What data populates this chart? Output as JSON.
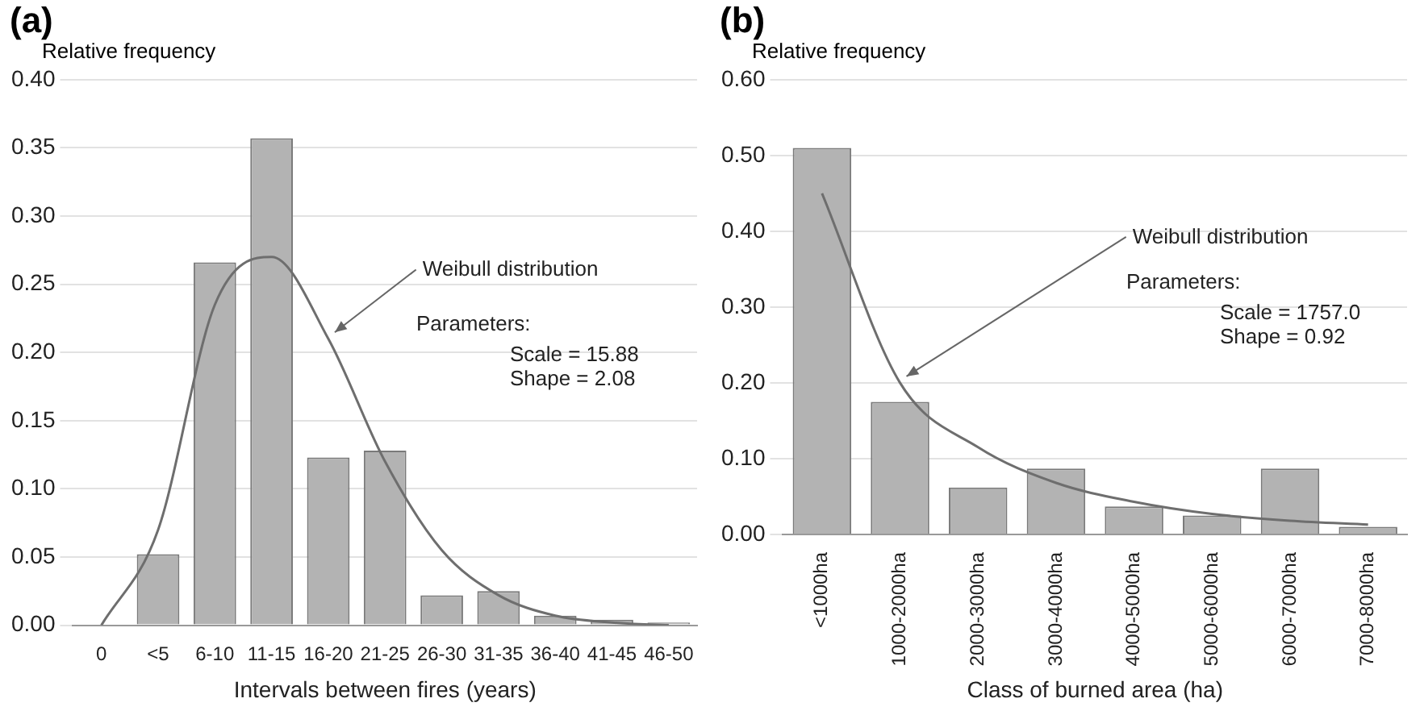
{
  "chart_data": [
    {
      "type": "bar",
      "title": "(a)",
      "ylabel": "Relative frequency",
      "xlabel": "Intervals between fires (years)",
      "categories": [
        "0",
        "<5",
        "6-10",
        "11-15",
        "16-20",
        "21-25",
        "26-30",
        "31-35",
        "36-40",
        "41-45",
        "46-50"
      ],
      "series": [
        {
          "color": "#b3b3b3",
          "values": [
            null,
            0.052,
            0.266,
            0.357,
            0.123,
            0.128,
            0.022,
            0.025,
            0.007,
            0.004,
            0.002
          ]
        },
        {
          "type": "line",
          "color": "#6e6e6e",
          "values": [
            0,
            0.07,
            0.235,
            0.27,
            0.21,
            0.12,
            0.055,
            0.022,
            0.007,
            0.002,
            0
          ]
        }
      ],
      "ylim": [
        0,
        0.4
      ],
      "yticks": [
        {
          "value": 0,
          "label": "0.00"
        },
        {
          "value": 0.05,
          "label": "0.05"
        },
        {
          "value": 0.1,
          "label": "0.10"
        },
        {
          "value": 0.15,
          "label": "0.15"
        },
        {
          "value": 0.2,
          "label": "0.20"
        },
        {
          "value": 0.25,
          "label": "0.25"
        },
        {
          "value": 0.3,
          "label": "0.30"
        },
        {
          "value": 0.35,
          "label": "0.35"
        },
        {
          "value": 0.4,
          "label": "0.40"
        }
      ],
      "annotations": [
        "Weibull distribution",
        "Parameters:",
        "Scale = 15.88",
        "Shape = 2.08"
      ],
      "grid": "y",
      "legend": false,
      "marker": "none"
    },
    {
      "type": "bar",
      "title": "(b)",
      "ylabel": "Relative frequency",
      "xlabel": "Class of burned area (ha)",
      "categories": [
        "<1000ha",
        "1000-2000ha",
        "2000-3000ha",
        "3000-4000ha",
        "4000-5000ha",
        "5000-6000ha",
        "6000-7000ha",
        "7000-8000ha"
      ],
      "series": [
        {
          "color": "#b3b3b3",
          "values": [
            0.51,
            0.175,
            0.062,
            0.087,
            0.037,
            0.025,
            0.087,
            0.01
          ]
        },
        {
          "type": "line",
          "color": "#6e6e6e",
          "values": [
            0.45,
            0.2,
            0.115,
            0.068,
            0.043,
            0.027,
            0.018,
            0.013
          ]
        }
      ],
      "ylim": [
        0,
        0.6
      ],
      "yticks": [
        {
          "value": 0,
          "label": "0.00"
        },
        {
          "value": 0.1,
          "label": "0.10"
        },
        {
          "value": 0.2,
          "label": "0.20"
        },
        {
          "value": 0.3,
          "label": "0.30"
        },
        {
          "value": 0.4,
          "label": "0.40"
        },
        {
          "value": 0.5,
          "label": "0.50"
        },
        {
          "value": 0.6,
          "label": "0.60"
        }
      ],
      "annotations": [
        "Weibull distribution",
        "Parameters:",
        "Scale = 1757.0",
        "Shape = 0.92"
      ],
      "grid": "y",
      "legend": false,
      "marker": "none"
    }
  ]
}
